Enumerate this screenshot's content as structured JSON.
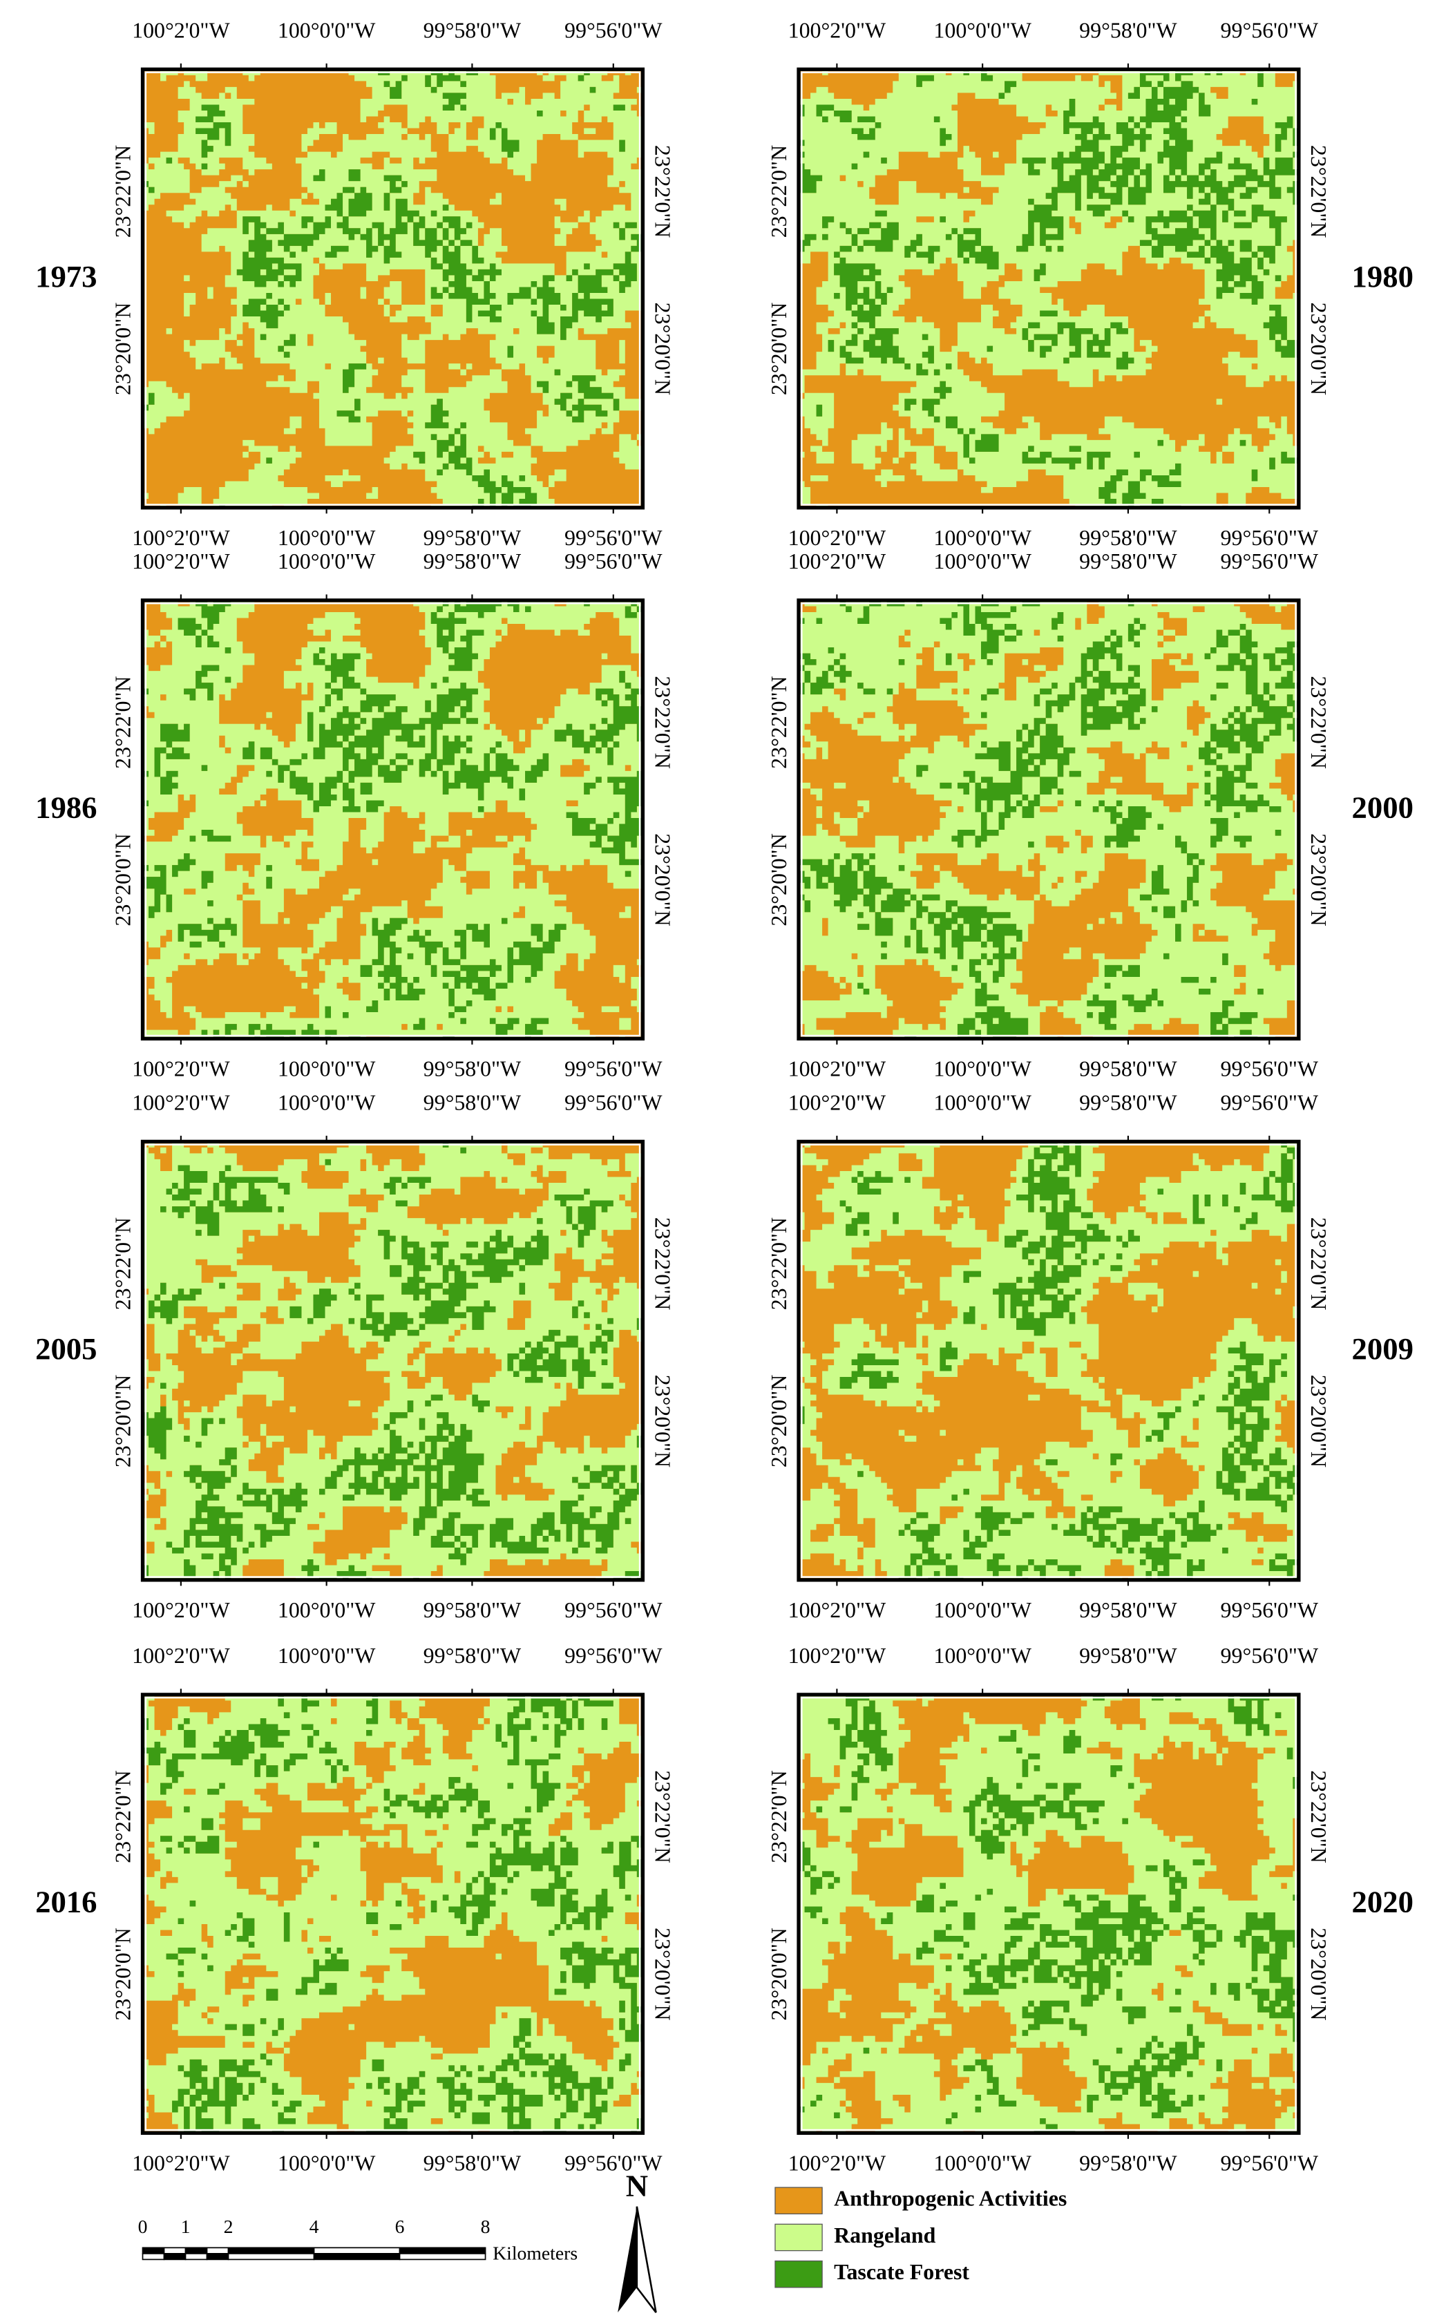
{
  "panels": [
    {
      "year": "1973"
    },
    {
      "year": "1980"
    },
    {
      "year": "1986"
    },
    {
      "year": "2000"
    },
    {
      "year": "2005"
    },
    {
      "year": "2009"
    },
    {
      "year": "2016"
    },
    {
      "year": "2020"
    }
  ],
  "longitude_labels": [
    "100°2'0\"W",
    "100°0'0\"W",
    "99°58'0\"W",
    "99°56'0\"W"
  ],
  "latitude_labels": [
    "23°22'0\"N",
    "23°20'0\"N"
  ],
  "scale_bar": {
    "ticks": [
      0,
      1,
      2,
      4,
      6,
      8
    ],
    "unit": "Kilometers"
  },
  "north_arrow": "N",
  "legend": [
    {
      "label": "Anthropogenic Activities",
      "color": "#e6961a"
    },
    {
      "label": "Rangeland",
      "color": "#ccfc8a"
    },
    {
      "label": "Tascate Forest",
      "color": "#3c9c14"
    }
  ]
}
